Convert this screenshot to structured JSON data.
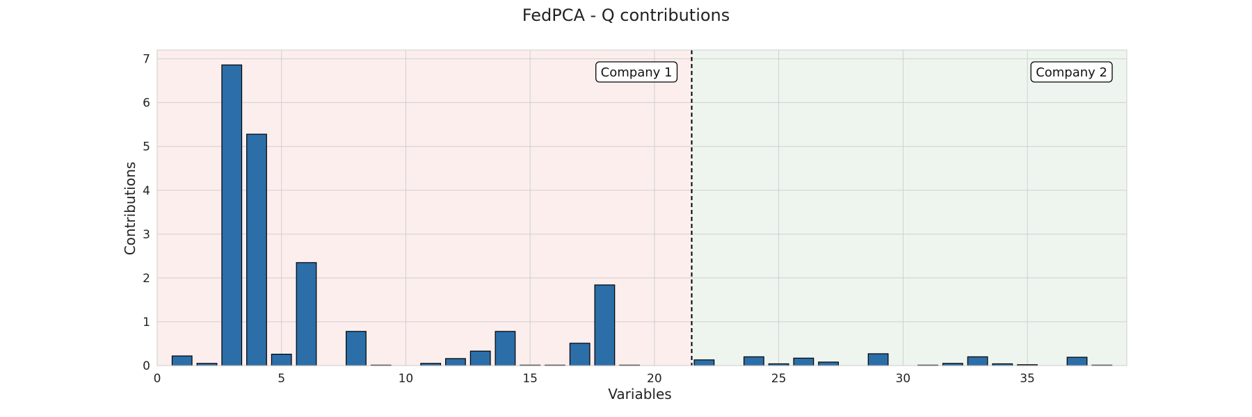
{
  "chart_data": {
    "type": "bar",
    "title": "FedPCA - Q contributions",
    "xlabel": "Variables",
    "ylabel": "Contributions",
    "xlim": [
      0,
      39
    ],
    "ylim": [
      0,
      7.2
    ],
    "xticks": [
      0,
      5,
      10,
      15,
      20,
      25,
      30,
      35
    ],
    "yticks": [
      0,
      1,
      2,
      3,
      4,
      5,
      6,
      7
    ],
    "grid": true,
    "divider_x": 21.5,
    "regions": [
      {
        "label": "Company 1",
        "x_range": [
          0,
          21.5
        ],
        "color": "#fdeeee"
      },
      {
        "label": "Company 2",
        "x_range": [
          21.5,
          39
        ],
        "color": "#eef5ee"
      }
    ],
    "bar_color": "#2b6ea8",
    "x": [
      1,
      2,
      3,
      4,
      5,
      6,
      7,
      8,
      9,
      10,
      11,
      12,
      13,
      14,
      15,
      16,
      17,
      18,
      19,
      20,
      21,
      22,
      23,
      24,
      25,
      26,
      27,
      28,
      29,
      30,
      31,
      32,
      33,
      34,
      35,
      36,
      37,
      38
    ],
    "values": [
      0.22,
      0.05,
      6.86,
      5.28,
      0.26,
      2.35,
      0,
      0.78,
      0.01,
      0,
      0.05,
      0.16,
      0.33,
      0.78,
      0.01,
      0.01,
      0.51,
      1.84,
      0.01,
      0,
      0,
      0.13,
      0,
      0.2,
      0.04,
      0.17,
      0.08,
      0,
      0.27,
      0,
      0.01,
      0.05,
      0.2,
      0.04,
      0.02,
      0,
      0.19,
      0.01
    ]
  }
}
